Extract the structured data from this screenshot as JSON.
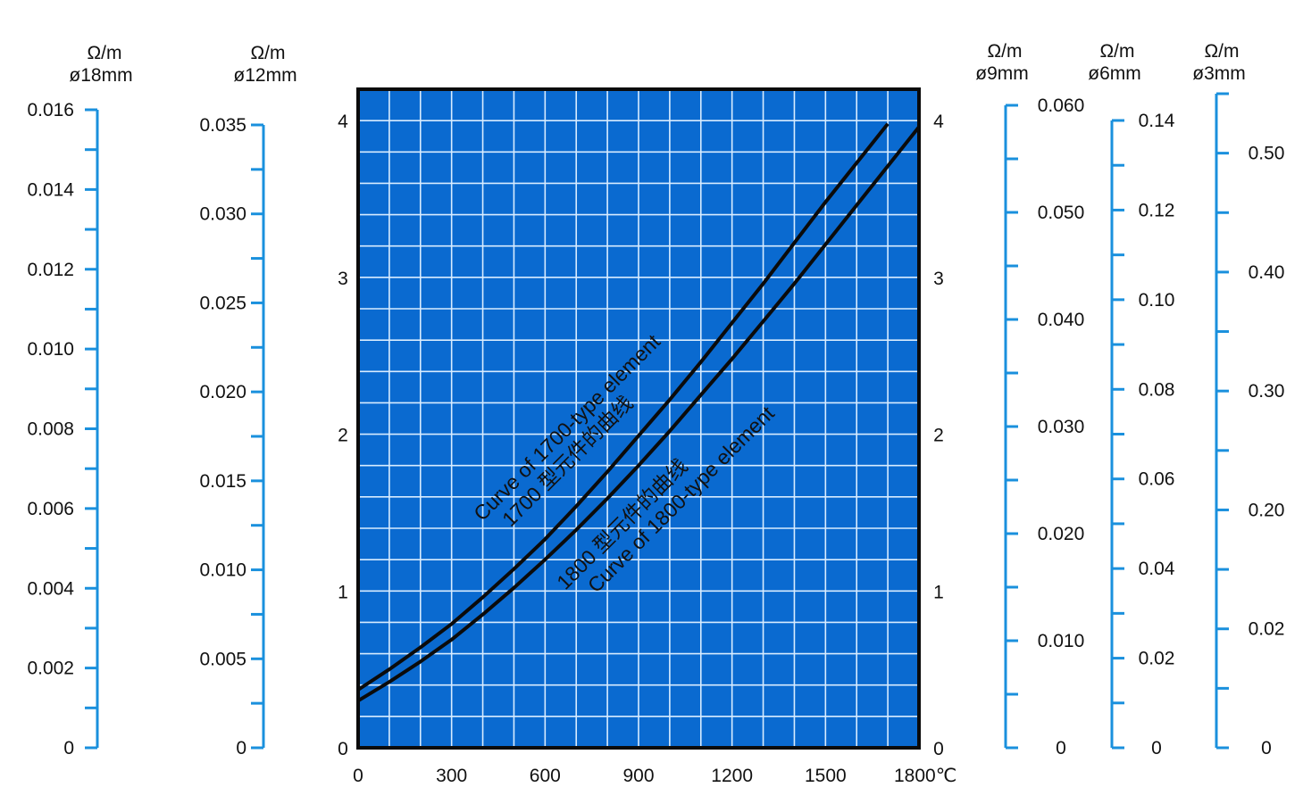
{
  "chart_data": {
    "type": "line",
    "x_axis": {
      "ticks": [
        "0",
        "300",
        "600",
        "900",
        "1200",
        "1500",
        "1800℃"
      ],
      "range": [
        0,
        1800
      ],
      "minor_step": 100
    },
    "y_axis_left": {
      "ticks": [
        "0",
        "1",
        "2",
        "3",
        "4"
      ],
      "range": [
        0,
        4.2
      ]
    },
    "y_axis_right": {
      "ticks": [
        "0",
        "1",
        "2",
        "3",
        "4"
      ],
      "range": [
        0,
        4.2
      ]
    },
    "grid": true,
    "plot_background": "#0a6ad0",
    "grid_color": "#d8ecff",
    "scale_color": "#1a90dd",
    "series": [
      {
        "name": "Curve of 1700-type element",
        "name_cn": "1700 型元件的曲线",
        "x": [
          0,
          100,
          200,
          300,
          400,
          500,
          600,
          700,
          800,
          900,
          1000,
          1100,
          1200,
          1300,
          1400,
          1500,
          1600,
          1700
        ],
        "y": [
          0.37,
          0.5,
          0.64,
          0.79,
          0.96,
          1.14,
          1.33,
          1.54,
          1.76,
          1.99,
          2.22,
          2.46,
          2.71,
          2.96,
          3.22,
          3.48,
          3.73,
          3.98
        ]
      },
      {
        "name": "Curve of 1800-type element",
        "name_cn": "1800 型元件的曲线",
        "x": [
          0,
          100,
          200,
          300,
          400,
          500,
          600,
          700,
          800,
          900,
          1000,
          1100,
          1200,
          1300,
          1400,
          1500,
          1600,
          1700,
          1800
        ],
        "y": [
          0.3,
          0.42,
          0.55,
          0.69,
          0.85,
          1.02,
          1.2,
          1.39,
          1.59,
          1.8,
          2.02,
          2.25,
          2.48,
          2.72,
          2.96,
          3.21,
          3.46,
          3.71,
          3.96
        ]
      }
    ],
    "scales": [
      {
        "id": "d18",
        "unit": "Ω/m",
        "diameter": "ø18mm",
        "side": "left",
        "labels": [
          "0",
          "0.002",
          "0.004",
          "0.006",
          "0.008",
          "0.010",
          "0.012",
          "0.014",
          "0.016"
        ],
        "range": [
          0,
          0.016
        ],
        "minor_per_major": 2
      },
      {
        "id": "d12",
        "unit": "Ω/m",
        "diameter": "ø12mm",
        "side": "left",
        "labels": [
          "0",
          "0.005",
          "0.010",
          "0.015",
          "0.020",
          "0.025",
          "0.030",
          "0.035"
        ],
        "range": [
          0,
          0.035
        ],
        "minor_per_major": 2
      },
      {
        "id": "d9",
        "unit": "Ω/m",
        "diameter": "ø9mm",
        "side": "right",
        "labels": [
          "0",
          "0.010",
          "0.020",
          "0.030",
          "0.040",
          "0.050",
          "0.060"
        ],
        "range": [
          0,
          0.06
        ],
        "minor_per_major": 2
      },
      {
        "id": "d6",
        "unit": "Ω/m",
        "diameter": "ø6mm",
        "side": "right",
        "labels": [
          "0",
          "0.02",
          "0.04",
          "0.06",
          "0.08",
          "0.10",
          "0.12",
          "0.14"
        ],
        "range": [
          0,
          0.14
        ],
        "minor_per_major": 2
      },
      {
        "id": "d3",
        "unit": "Ω/m",
        "diameter": "ø3mm",
        "side": "right",
        "labels": [
          "0",
          "0.02",
          "0.20",
          "0.30",
          "0.40",
          "0.50"
        ],
        "range": [
          0,
          0.55
        ],
        "minor_per_major": 2
      }
    ]
  }
}
